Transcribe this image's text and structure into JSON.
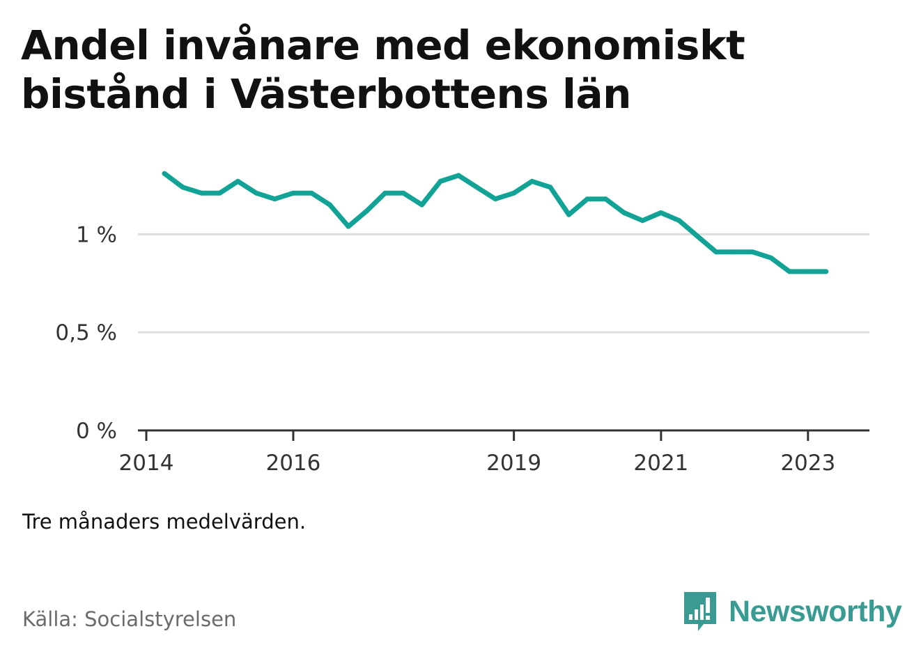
{
  "title": "Andel invånare med ekonomiskt bistånd i Västerbottens län",
  "note": "Tre månaders medelvärden.",
  "source": "Källa: Socialstyrelsen",
  "brand": {
    "name": "Newsworthy",
    "icon": "newsworthy-logo-icon",
    "color": "#3a9b93"
  },
  "colors": {
    "line": "#12a396",
    "grid": "#dddddd",
    "axis": "#333333"
  },
  "chart_data": {
    "type": "line",
    "title": "Andel invånare med ekonomiskt bistånd i Västerbottens län",
    "xlabel": "",
    "ylabel": "",
    "x_axis_type": "date",
    "xlim": [
      "2014-01-01",
      "2023-09-01"
    ],
    "ylim": [
      0,
      1.47
    ],
    "x_ticks": [
      {
        "date": "2014-01-01",
        "label": "2014"
      },
      {
        "date": "2016-01-01",
        "label": "2016"
      },
      {
        "date": "2019-01-01",
        "label": "2019"
      },
      {
        "date": "2021-01-01",
        "label": "2021"
      },
      {
        "date": "2023-01-01",
        "label": "2023"
      }
    ],
    "y_ticks": [
      {
        "value": 0,
        "label": "0 %"
      },
      {
        "value": 0.5,
        "label": "0,5 %"
      },
      {
        "value": 1,
        "label": "1 %"
      }
    ],
    "grid": true,
    "legend": "none",
    "series": [
      {
        "color": "#12a396",
        "x": [
          "2014-04-01",
          "2014-07-01",
          "2014-10-01",
          "2015-01-01",
          "2015-04-01",
          "2015-07-01",
          "2015-10-01",
          "2016-01-01",
          "2016-04-01",
          "2016-07-01",
          "2016-10-01",
          "2017-01-01",
          "2017-04-01",
          "2017-07-01",
          "2017-10-01",
          "2018-01-01",
          "2018-04-01",
          "2018-07-01",
          "2018-10-01",
          "2019-01-01",
          "2019-04-01",
          "2019-07-01",
          "2019-10-01",
          "2020-01-01",
          "2020-04-01",
          "2020-07-01",
          "2020-10-01",
          "2021-01-01",
          "2021-04-01",
          "2021-07-01",
          "2021-10-01",
          "2022-01-01",
          "2022-04-01",
          "2022-07-01",
          "2022-10-01",
          "2023-01-01",
          "2023-04-01"
        ],
        "values": [
          1.31,
          1.24,
          1.21,
          1.21,
          1.27,
          1.21,
          1.18,
          1.21,
          1.21,
          1.15,
          1.04,
          1.12,
          1.21,
          1.21,
          1.15,
          1.27,
          1.3,
          1.24,
          1.18,
          1.21,
          1.27,
          1.24,
          1.1,
          1.18,
          1.18,
          1.11,
          1.07,
          1.11,
          1.07,
          0.99,
          0.91,
          0.91,
          0.91,
          0.88,
          0.81,
          0.81,
          0.81
        ]
      }
    ]
  }
}
